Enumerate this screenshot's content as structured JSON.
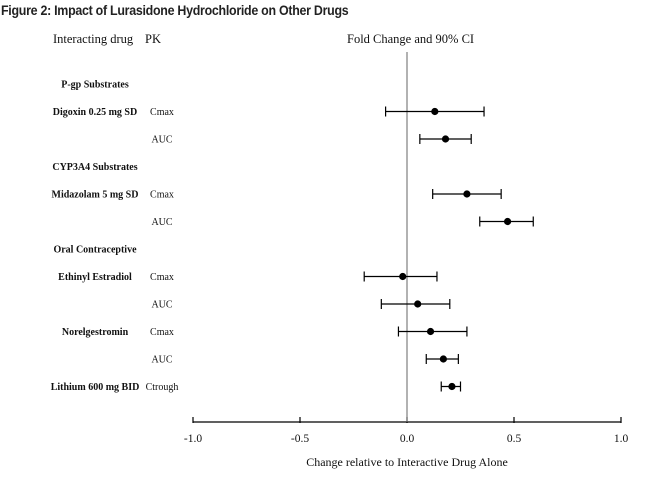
{
  "figure_title": "Figure 2: Impact of Lurasidone Hydrochloride on Other Drugs",
  "headers": {
    "interacting_drug": "Interacting drug",
    "pk": "PK",
    "fold_change": "Fold Change and 90% CI"
  },
  "chart_data": {
    "type": "forest",
    "title": "Fold Change and 90% CI",
    "xlabel": "Change relative to Interactive Drug Alone",
    "ylabel": "",
    "xlim": [
      -1.0,
      1.0
    ],
    "xticks": [
      -1.0,
      -0.5,
      0.0,
      0.5,
      1.0
    ],
    "xtick_labels": [
      "-1.0",
      "-0.5",
      "0.0",
      "0.5",
      "1.0"
    ],
    "reference_line": 0.0,
    "grid": false,
    "rows": [
      {
        "kind": "group",
        "label": "P-gp Substrates"
      },
      {
        "kind": "data",
        "drug": "Digoxin 0.25 mg SD",
        "pk": "Cmax",
        "estimate": 0.13,
        "ci_low": -0.1,
        "ci_high": 0.36
      },
      {
        "kind": "data",
        "drug": "",
        "pk": "AUC",
        "estimate": 0.18,
        "ci_low": 0.06,
        "ci_high": 0.3
      },
      {
        "kind": "group",
        "label": "CYP3A4 Substrates"
      },
      {
        "kind": "data",
        "drug": "Midazolam 5 mg SD",
        "pk": "Cmax",
        "estimate": 0.28,
        "ci_low": 0.12,
        "ci_high": 0.44
      },
      {
        "kind": "data",
        "drug": "",
        "pk": "AUC",
        "estimate": 0.47,
        "ci_low": 0.34,
        "ci_high": 0.59
      },
      {
        "kind": "group",
        "label": "Oral Contraceptive"
      },
      {
        "kind": "data",
        "drug": "Ethinyl Estradiol",
        "pk": "Cmax",
        "estimate": -0.02,
        "ci_low": -0.2,
        "ci_high": 0.14
      },
      {
        "kind": "data",
        "drug": "",
        "pk": "AUC",
        "estimate": 0.05,
        "ci_low": -0.12,
        "ci_high": 0.2
      },
      {
        "kind": "data",
        "drug": "Norelgestromin",
        "pk": "Cmax",
        "estimate": 0.11,
        "ci_low": -0.04,
        "ci_high": 0.28
      },
      {
        "kind": "data",
        "drug": "",
        "pk": "AUC",
        "estimate": 0.17,
        "ci_low": 0.09,
        "ci_high": 0.24
      },
      {
        "kind": "data",
        "drug": "Lithium 600 mg BID",
        "pk": "Ctrough",
        "estimate": 0.21,
        "ci_low": 0.16,
        "ci_high": 0.25
      }
    ]
  }
}
